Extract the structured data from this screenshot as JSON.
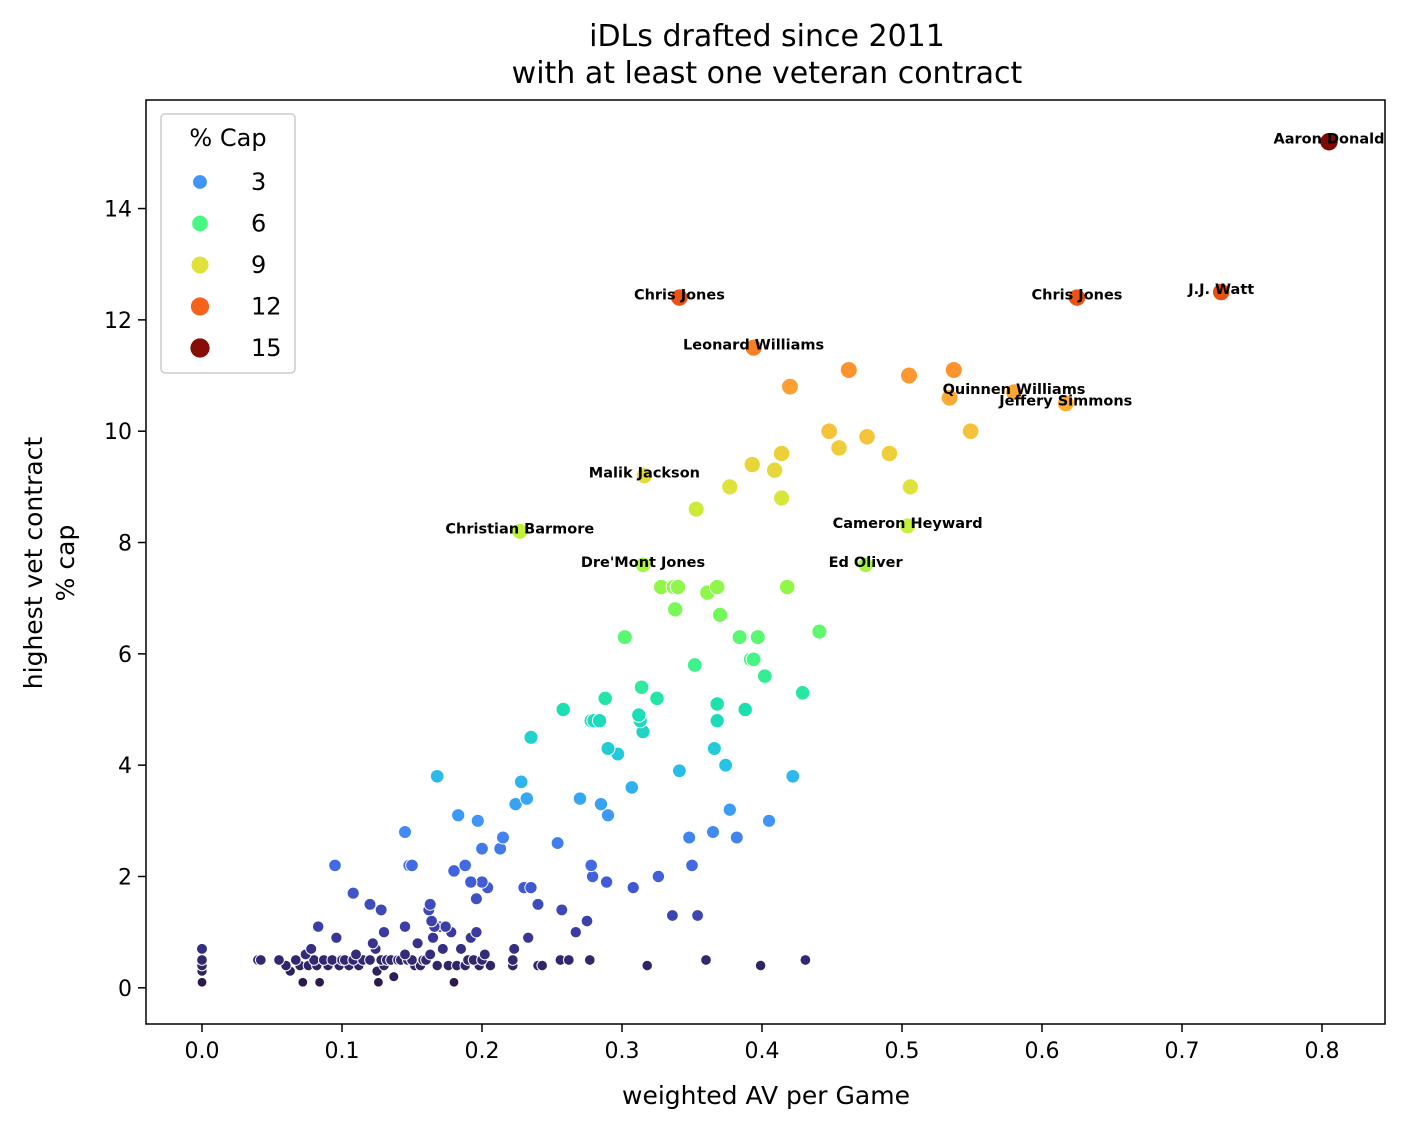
{
  "chart_data": {
    "type": "scatter",
    "title_lines": [
      "iDLs drafted since 2011",
      "with at least one veteran contract"
    ],
    "xlabel": "weighted AV per Game",
    "ylabel_lines": [
      "highest vet contract",
      "% cap"
    ],
    "xlim": [
      -0.04,
      0.845
    ],
    "ylim": [
      -0.65,
      15.95
    ],
    "xticks": [
      0.0,
      0.1,
      0.2,
      0.3,
      0.4,
      0.5,
      0.6,
      0.7,
      0.8
    ],
    "xtick_labels": [
      "0.0",
      "0.1",
      "0.2",
      "0.3",
      "0.4",
      "0.5",
      "0.6",
      "0.7",
      "0.8"
    ],
    "yticks": [
      0,
      2,
      4,
      6,
      8,
      10,
      12,
      14
    ],
    "ytick_labels": [
      "0",
      "2",
      "4",
      "6",
      "8",
      "10",
      "12",
      "14"
    ],
    "grid": false,
    "legend": {
      "title": "% Cap",
      "placement": "upper-left",
      "entries": [
        {
          "label": "3",
          "value": 3
        },
        {
          "label": "6",
          "value": 6
        },
        {
          "label": "9",
          "value": 9
        },
        {
          "label": "12",
          "value": 12
        },
        {
          "label": "15",
          "value": 15
        }
      ]
    },
    "hue_and_size": "% Cap",
    "colormap": [
      {
        "v": 0.1,
        "color": "#2b1a4a"
      },
      {
        "v": 1.0,
        "color": "#3a3aa0"
      },
      {
        "v": 2.0,
        "color": "#4260dc"
      },
      {
        "v": 3.0,
        "color": "#4194f8"
      },
      {
        "v": 4.0,
        "color": "#26c3e8"
      },
      {
        "v": 5.0,
        "color": "#1ae0b0"
      },
      {
        "v": 6.0,
        "color": "#47f882"
      },
      {
        "v": 7.0,
        "color": "#86f84c"
      },
      {
        "v": 8.0,
        "color": "#b8f43a"
      },
      {
        "v": 9.0,
        "color": "#dfe23a"
      },
      {
        "v": 10.0,
        "color": "#f6c23a"
      },
      {
        "v": 11.0,
        "color": "#fd9830"
      },
      {
        "v": 12.0,
        "color": "#f5631a"
      },
      {
        "v": 13.0,
        "color": "#d93a0c"
      },
      {
        "v": 15.2,
        "color": "#7e0a04"
      }
    ],
    "points": [
      [
        0.0,
        0.7
      ],
      [
        0.0,
        0.5
      ],
      [
        0.0,
        0.4
      ],
      [
        0.0,
        0.3
      ],
      [
        0.0,
        0.1
      ],
      [
        0.04,
        0.5
      ],
      [
        0.042,
        0.5
      ],
      [
        0.055,
        0.5
      ],
      [
        0.06,
        0.4
      ],
      [
        0.063,
        0.3
      ],
      [
        0.067,
        0.5
      ],
      [
        0.07,
        0.4
      ],
      [
        0.072,
        0.1
      ],
      [
        0.074,
        0.6
      ],
      [
        0.076,
        0.4
      ],
      [
        0.078,
        0.7
      ],
      [
        0.08,
        0.5
      ],
      [
        0.082,
        0.4
      ],
      [
        0.083,
        1.1
      ],
      [
        0.084,
        0.1
      ],
      [
        0.087,
        0.5
      ],
      [
        0.09,
        0.4
      ],
      [
        0.093,
        0.5
      ],
      [
        0.096,
        0.9
      ],
      [
        0.098,
        0.4
      ],
      [
        0.1,
        0.5
      ],
      [
        0.102,
        0.5
      ],
      [
        0.105,
        0.4
      ],
      [
        0.108,
        0.5
      ],
      [
        0.11,
        0.6
      ],
      [
        0.112,
        0.4
      ],
      [
        0.115,
        0.5
      ],
      [
        0.12,
        0.5
      ],
      [
        0.122,
        0.8
      ],
      [
        0.124,
        0.7
      ],
      [
        0.125,
        0.3
      ],
      [
        0.126,
        0.1
      ],
      [
        0.128,
        0.5
      ],
      [
        0.13,
        0.4
      ],
      [
        0.132,
        0.5
      ],
      [
        0.135,
        0.5
      ],
      [
        0.137,
        0.2
      ],
      [
        0.14,
        0.5
      ],
      [
        0.142,
        0.5
      ],
      [
        0.145,
        0.6
      ],
      [
        0.147,
        0.5
      ],
      [
        0.15,
        0.5
      ],
      [
        0.152,
        0.4
      ],
      [
        0.154,
        0.8
      ],
      [
        0.156,
        0.4
      ],
      [
        0.158,
        0.5
      ],
      [
        0.16,
        0.5
      ],
      [
        0.163,
        0.6
      ],
      [
        0.165,
        0.9
      ],
      [
        0.168,
        0.4
      ],
      [
        0.17,
        1.1
      ],
      [
        0.172,
        0.7
      ],
      [
        0.174,
        1.1
      ],
      [
        0.176,
        0.4
      ],
      [
        0.178,
        1.0
      ],
      [
        0.18,
        0.1
      ],
      [
        0.182,
        0.4
      ],
      [
        0.185,
        0.7
      ],
      [
        0.188,
        0.4
      ],
      [
        0.19,
        0.5
      ],
      [
        0.192,
        0.9
      ],
      [
        0.194,
        0.5
      ],
      [
        0.196,
        1.0
      ],
      [
        0.198,
        0.4
      ],
      [
        0.2,
        0.5
      ],
      [
        0.202,
        0.6
      ],
      [
        0.206,
        0.4
      ],
      [
        0.222,
        0.5
      ],
      [
        0.222,
        0.4
      ],
      [
        0.223,
        0.7
      ],
      [
        0.233,
        0.9
      ],
      [
        0.24,
        0.4
      ],
      [
        0.243,
        0.4
      ],
      [
        0.256,
        0.5
      ],
      [
        0.262,
        0.5
      ],
      [
        0.277,
        0.5
      ],
      [
        0.318,
        0.4
      ],
      [
        0.36,
        0.5
      ],
      [
        0.399,
        0.4
      ],
      [
        0.431,
        0.5
      ],
      [
        0.108,
        1.7
      ],
      [
        0.12,
        1.5
      ],
      [
        0.128,
        1.4
      ],
      [
        0.13,
        1.0
      ],
      [
        0.145,
        1.1
      ],
      [
        0.162,
        1.4
      ],
      [
        0.163,
        1.5
      ],
      [
        0.164,
        1.2
      ],
      [
        0.166,
        1.1
      ],
      [
        0.18,
        2.1
      ],
      [
        0.196,
        1.6
      ],
      [
        0.2,
        1.9
      ],
      [
        0.204,
        1.8
      ],
      [
        0.23,
        1.8
      ],
      [
        0.235,
        1.8
      ],
      [
        0.24,
        1.5
      ],
      [
        0.257,
        1.4
      ],
      [
        0.267,
        1.0
      ],
      [
        0.275,
        1.2
      ],
      [
        0.308,
        1.8
      ],
      [
        0.326,
        2.0
      ],
      [
        0.336,
        1.3
      ],
      [
        0.354,
        1.3
      ],
      [
        0.095,
        2.2
      ],
      [
        0.145,
        2.8
      ],
      [
        0.148,
        2.2
      ],
      [
        0.15,
        2.2
      ],
      [
        0.168,
        3.8
      ],
      [
        0.183,
        3.1
      ],
      [
        0.188,
        2.2
      ],
      [
        0.192,
        1.9
      ],
      [
        0.197,
        3.0
      ],
      [
        0.2,
        2.5
      ],
      [
        0.213,
        2.5
      ],
      [
        0.215,
        2.7
      ],
      [
        0.224,
        3.3
      ],
      [
        0.228,
        3.7
      ],
      [
        0.232,
        3.4
      ],
      [
        0.254,
        2.6
      ],
      [
        0.27,
        3.4
      ],
      [
        0.278,
        2.2
      ],
      [
        0.279,
        2.0
      ],
      [
        0.285,
        3.3
      ],
      [
        0.289,
        1.9
      ],
      [
        0.29,
        3.1
      ],
      [
        0.307,
        3.6
      ],
      [
        0.341,
        3.9
      ],
      [
        0.348,
        2.7
      ],
      [
        0.35,
        2.2
      ],
      [
        0.365,
        2.8
      ],
      [
        0.377,
        3.2
      ],
      [
        0.382,
        2.7
      ],
      [
        0.405,
        3.0
      ],
      [
        0.422,
        3.8
      ],
      [
        0.235,
        4.5
      ],
      [
        0.258,
        5.0
      ],
      [
        0.278,
        4.8
      ],
      [
        0.28,
        4.8
      ],
      [
        0.284,
        4.8
      ],
      [
        0.288,
        5.2
      ],
      [
        0.29,
        4.3
      ],
      [
        0.297,
        4.2
      ],
      [
        0.312,
        4.9
      ],
      [
        0.313,
        4.8
      ],
      [
        0.314,
        5.4
      ],
      [
        0.315,
        4.6
      ],
      [
        0.325,
        5.2
      ],
      [
        0.352,
        5.8
      ],
      [
        0.366,
        4.3
      ],
      [
        0.368,
        5.1
      ],
      [
        0.368,
        4.8
      ],
      [
        0.374,
        4.0
      ],
      [
        0.388,
        5.0
      ],
      [
        0.429,
        5.3
      ],
      [
        0.302,
        6.3
      ],
      [
        0.315,
        7.6
      ],
      [
        0.328,
        7.2
      ],
      [
        0.337,
        7.2
      ],
      [
        0.338,
        6.8
      ],
      [
        0.34,
        7.2
      ],
      [
        0.361,
        7.1
      ],
      [
        0.368,
        7.2
      ],
      [
        0.37,
        6.7
      ],
      [
        0.384,
        6.3
      ],
      [
        0.392,
        5.9
      ],
      [
        0.394,
        5.9
      ],
      [
        0.397,
        6.3
      ],
      [
        0.402,
        5.6
      ],
      [
        0.418,
        7.2
      ],
      [
        0.441,
        6.4
      ],
      [
        0.474,
        7.6
      ],
      [
        0.227,
        8.2
      ],
      [
        0.316,
        9.2
      ],
      [
        0.353,
        8.6
      ],
      [
        0.377,
        9.0
      ],
      [
        0.393,
        9.4
      ],
      [
        0.409,
        9.3
      ],
      [
        0.414,
        8.8
      ],
      [
        0.414,
        9.6
      ],
      [
        0.448,
        10.0
      ],
      [
        0.455,
        9.7
      ],
      [
        0.475,
        9.9
      ],
      [
        0.491,
        9.6
      ],
      [
        0.504,
        8.3
      ],
      [
        0.506,
        9.0
      ],
      [
        0.549,
        10.0
      ],
      [
        0.42,
        10.8
      ],
      [
        0.462,
        11.1
      ],
      [
        0.505,
        11.0
      ],
      [
        0.534,
        10.6
      ],
      [
        0.537,
        11.1
      ],
      [
        0.58,
        10.7
      ],
      [
        0.617,
        10.5
      ],
      [
        0.341,
        12.4
      ],
      [
        0.394,
        11.5
      ],
      [
        0.625,
        12.4
      ],
      [
        0.728,
        12.5
      ],
      [
        0.805,
        15.2
      ]
    ],
    "annotations": [
      {
        "text": "Aaron Donald",
        "x": 0.805,
        "y": 15.2
      },
      {
        "text": "Chris Jones",
        "x": 0.341,
        "y": 12.4
      },
      {
        "text": "Chris Jones",
        "x": 0.625,
        "y": 12.4
      },
      {
        "text": "J.J. Watt",
        "x": 0.728,
        "y": 12.5
      },
      {
        "text": "Leonard Williams",
        "x": 0.394,
        "y": 11.5
      },
      {
        "text": "Quinnen Williams",
        "x": 0.58,
        "y": 10.7
      },
      {
        "text": "Jeffery Simmons",
        "x": 0.617,
        "y": 10.5
      },
      {
        "text": "Malik Jackson",
        "x": 0.316,
        "y": 9.2
      },
      {
        "text": "Christian Barmore",
        "x": 0.227,
        "y": 8.2
      },
      {
        "text": "Cameron Heyward",
        "x": 0.504,
        "y": 8.3
      },
      {
        "text": "Dre'Mont Jones",
        "x": 0.315,
        "y": 7.6
      },
      {
        "text": "Ed Oliver",
        "x": 0.474,
        "y": 7.6
      }
    ]
  }
}
